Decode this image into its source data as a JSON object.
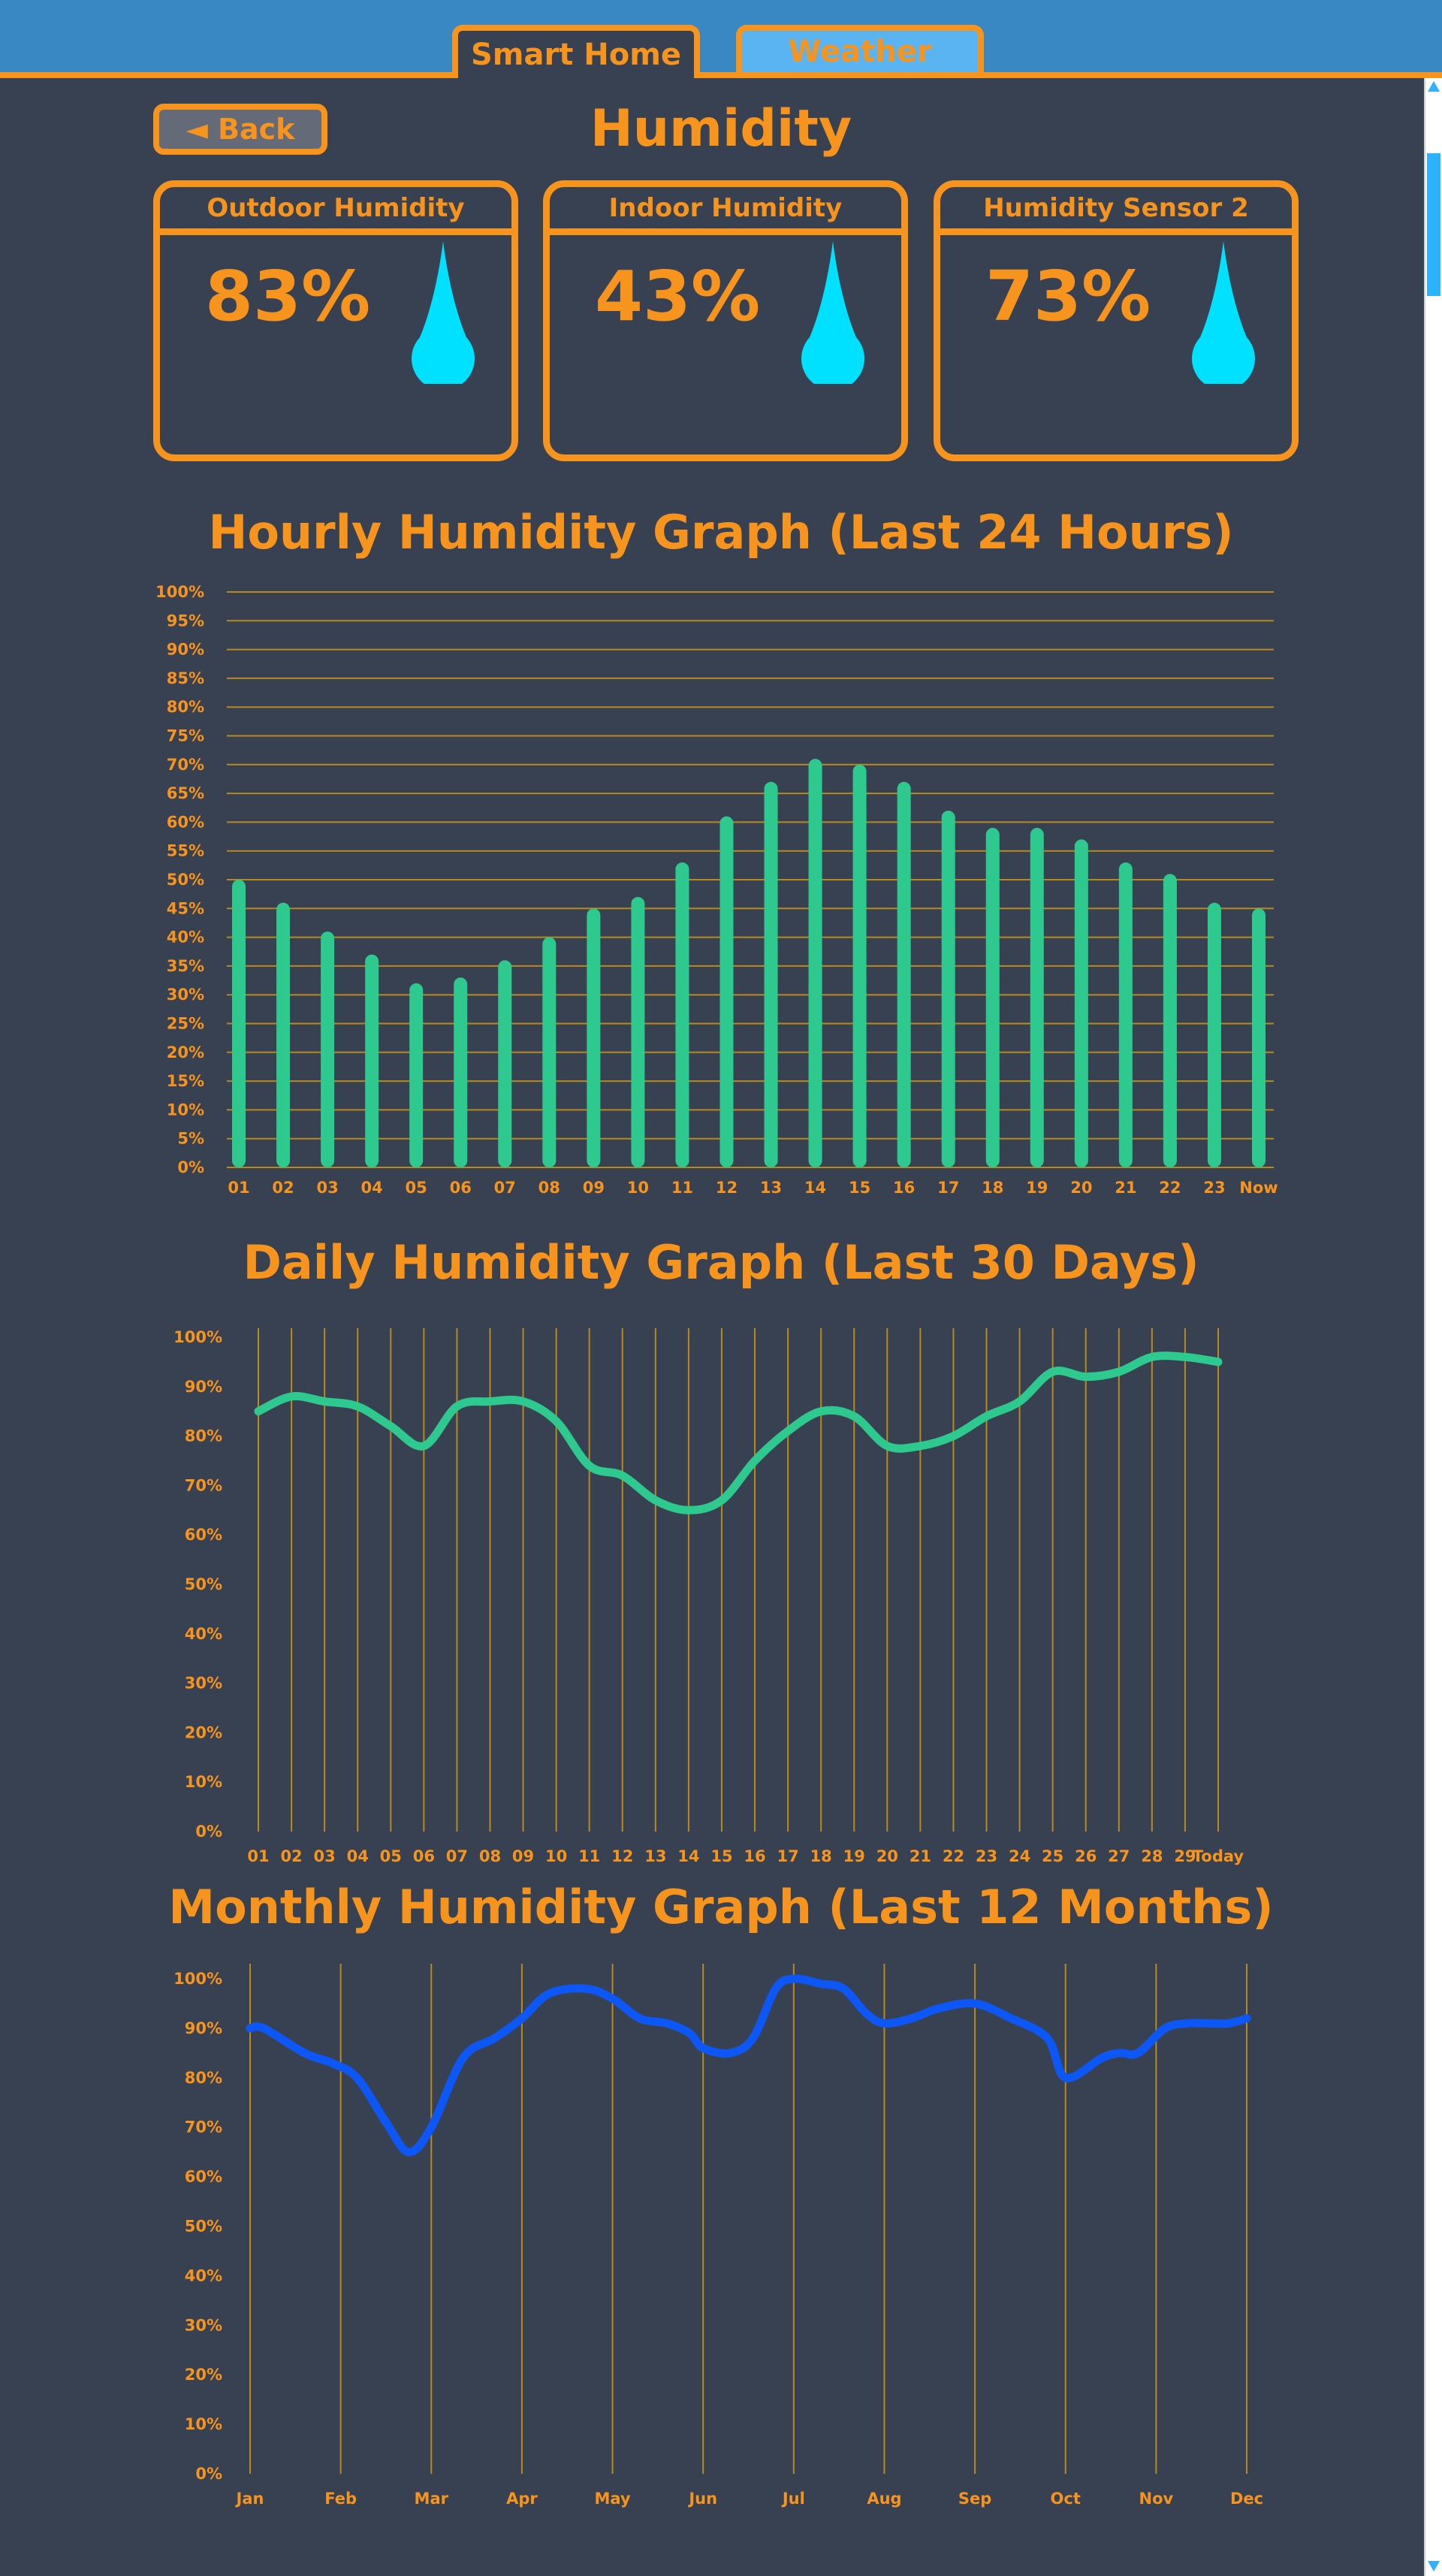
{
  "tabs": [
    {
      "label": "Smart Home",
      "active": true
    },
    {
      "label": "Weather",
      "active": false
    }
  ],
  "back_label": "◄ Back",
  "page_title": "Humidity",
  "cards": [
    {
      "title": "Outdoor Humidity",
      "value": "83%",
      "icon": "water-drop-icon"
    },
    {
      "title": "Indoor Humidity",
      "value": "43%",
      "icon": "water-drop-icon"
    },
    {
      "title": "Humidity Sensor 2",
      "value": "73%",
      "icon": "water-drop-icon"
    }
  ],
  "colors": {
    "background": "#384152",
    "accent": "#f7941d",
    "header": "#3987c3",
    "bar": "#2ec98e",
    "daily_line": "#2ec98e",
    "monthly_line": "#0c57f5",
    "drop": "#00e0ff"
  },
  "chart_data": [
    {
      "type": "bar",
      "title": "Hourly Humidity Graph (Last 24 Hours)",
      "categories": [
        "01",
        "02",
        "03",
        "04",
        "05",
        "06",
        "07",
        "08",
        "09",
        "10",
        "11",
        "12",
        "13",
        "14",
        "15",
        "16",
        "17",
        "18",
        "19",
        "20",
        "21",
        "22",
        "23",
        "Now"
      ],
      "values": [
        50,
        46,
        41,
        37,
        32,
        33,
        36,
        40,
        45,
        47,
        53,
        61,
        67,
        71,
        70,
        67,
        62,
        59,
        59,
        57,
        53,
        51,
        46,
        45
      ],
      "yticks": [
        "0%",
        "5%",
        "10%",
        "15%",
        "20%",
        "25%",
        "30%",
        "35%",
        "40%",
        "45%",
        "50%",
        "55%",
        "60%",
        "65%",
        "70%",
        "75%",
        "80%",
        "85%",
        "90%",
        "95%",
        "100%"
      ],
      "ylim": [
        0,
        100
      ],
      "grid": "horizontal"
    },
    {
      "type": "line",
      "title": "Daily Humidity Graph (Last 30 Days)",
      "categories": [
        "01",
        "02",
        "03",
        "04",
        "05",
        "06",
        "07",
        "08",
        "09",
        "10",
        "11",
        "12",
        "13",
        "14",
        "15",
        "16",
        "17",
        "18",
        "19",
        "20",
        "21",
        "22",
        "23",
        "24",
        "25",
        "26",
        "27",
        "28",
        "29",
        "Today"
      ],
      "values": [
        85,
        88,
        87,
        86,
        82,
        78,
        86,
        87,
        87,
        83,
        74,
        72,
        67,
        65,
        67,
        75,
        81,
        85,
        84,
        78,
        78,
        80,
        84,
        87,
        93,
        92,
        93,
        96,
        96,
        95
      ],
      "yticks": [
        "0%",
        "10%",
        "20%",
        "30%",
        "40%",
        "50%",
        "60%",
        "70%",
        "80%",
        "90%",
        "100%"
      ],
      "ylim": [
        0,
        100
      ],
      "grid": "vertical"
    },
    {
      "type": "line",
      "title": "Monthly Humidity Graph (Last 12 Months)",
      "categories": [
        "Jan",
        "Feb",
        "Mar",
        "Apr",
        "May",
        "Jun",
        "Jul",
        "Aug",
        "Sep",
        "Oct",
        "Nov",
        "Dec"
      ],
      "x": [
        0,
        0.15,
        0.6,
        0.9,
        1.18,
        1.5,
        1.75,
        2.0,
        2.35,
        2.7,
        3.0,
        3.3,
        3.7,
        4.0,
        4.3,
        4.6,
        4.85,
        5.0,
        5.3,
        5.55,
        5.8,
        6.0,
        6.3,
        6.55,
        6.8,
        7.0,
        7.3,
        7.6,
        8.0,
        8.4,
        8.8,
        9.0,
        9.4,
        9.6,
        9.8,
        10.1,
        10.35,
        10.55,
        10.8,
        11.0
      ],
      "values": [
        90,
        90,
        85,
        83,
        80,
        71,
        65,
        70,
        84,
        88,
        92,
        97,
        98,
        96,
        92,
        91,
        89,
        86,
        85,
        88,
        98,
        100,
        99,
        98,
        93,
        91,
        92,
        94,
        95,
        92,
        88,
        80,
        84,
        85,
        85,
        90,
        91,
        91,
        91,
        92
      ],
      "yticks": [
        "0%",
        "10%",
        "20%",
        "30%",
        "40%",
        "50%",
        "60%",
        "70%",
        "80%",
        "90%",
        "100%"
      ],
      "ylim": [
        0,
        100
      ],
      "grid": "vertical"
    }
  ]
}
